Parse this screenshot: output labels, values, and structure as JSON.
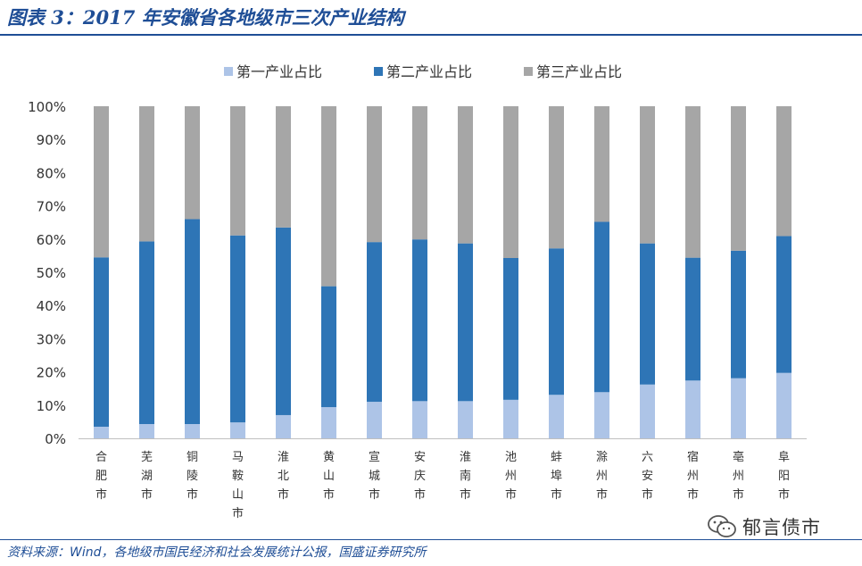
{
  "title": "图表 3：2017 年安徽省各地级市三次产业结构",
  "source": "资料来源：Wind，各地级市国民经济和社会发展统计公报，国盛证券研究所",
  "watermark": {
    "text": "郁言债市",
    "icon": "wechat-icon"
  },
  "colors": {
    "series1": "#adc4e7",
    "series2": "#2e75b6",
    "series3": "#a6a6a6",
    "title": "#1f4e96"
  },
  "chart_data": {
    "type": "bar",
    "stacked": true,
    "categories": [
      "合肥市",
      "芜湖市",
      "铜陵市",
      "马鞍山市",
      "淮北市",
      "黄山市",
      "宣城市",
      "安庆市",
      "淮南市",
      "池州市",
      "蚌埠市",
      "滁州市",
      "六安市",
      "宿州市",
      "亳州市",
      "阜阳市"
    ],
    "series": [
      {
        "name": "第一产业占比",
        "values": [
          3.5,
          4.3,
          4.3,
          4.8,
          7.0,
          9.4,
          11.0,
          11.2,
          11.2,
          11.6,
          13.1,
          13.9,
          16.2,
          17.4,
          18.1,
          19.7
        ]
      },
      {
        "name": "第二产业占比",
        "values": [
          51.0,
          55.0,
          61.7,
          56.3,
          56.5,
          36.4,
          48.1,
          48.7,
          47.5,
          42.7,
          44.1,
          51.3,
          42.5,
          37.0,
          38.4,
          41.2
        ]
      },
      {
        "name": "第三产业占比",
        "values": [
          45.5,
          40.7,
          34.0,
          38.9,
          36.5,
          54.2,
          40.9,
          40.1,
          41.3,
          45.7,
          42.8,
          34.8,
          41.3,
          45.6,
          43.5,
          39.1
        ]
      }
    ],
    "yticks": [
      "0%",
      "10%",
      "20%",
      "30%",
      "40%",
      "50%",
      "60%",
      "70%",
      "80%",
      "90%",
      "100%"
    ],
    "ylim": [
      0,
      100
    ],
    "grid": false,
    "legend_position": "top-center"
  }
}
